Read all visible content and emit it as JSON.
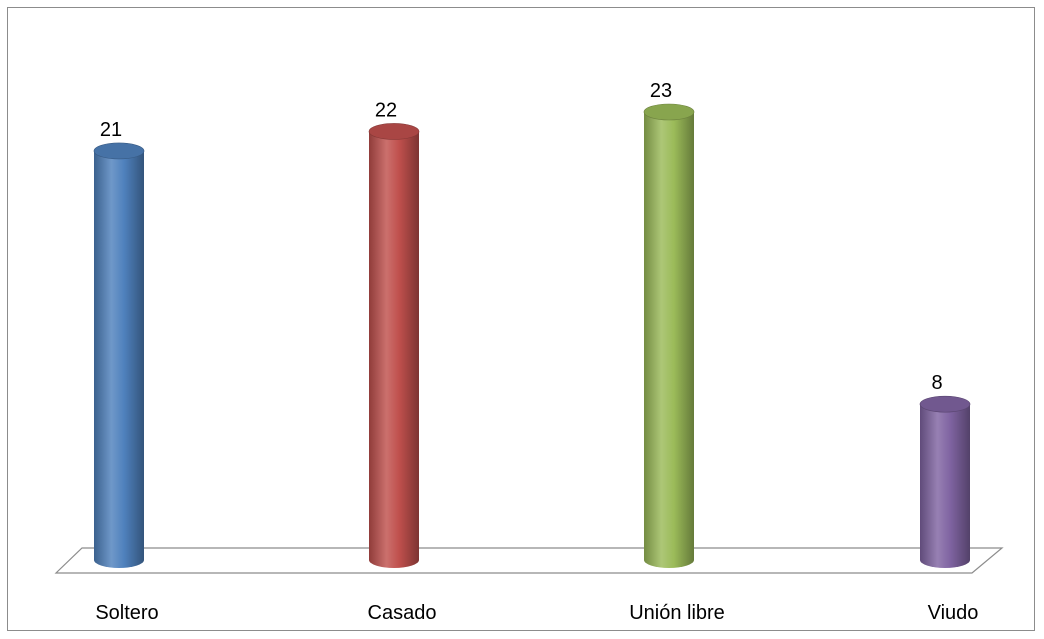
{
  "chart_data": {
    "type": "bar",
    "style": "3d-cylinder",
    "categories": [
      "Soltero",
      "Casado",
      "Unión libre",
      "Viudo"
    ],
    "values": [
      21,
      22,
      23,
      8
    ],
    "data_labels": [
      "21",
      "22",
      "23",
      "8"
    ],
    "colors": [
      "#4f81bd",
      "#c0504d",
      "#9bbb59",
      "#8064a2"
    ],
    "ylim": [
      0,
      23
    ],
    "grid": false,
    "legend": "none",
    "title": "",
    "xlabel": "",
    "ylabel": ""
  }
}
